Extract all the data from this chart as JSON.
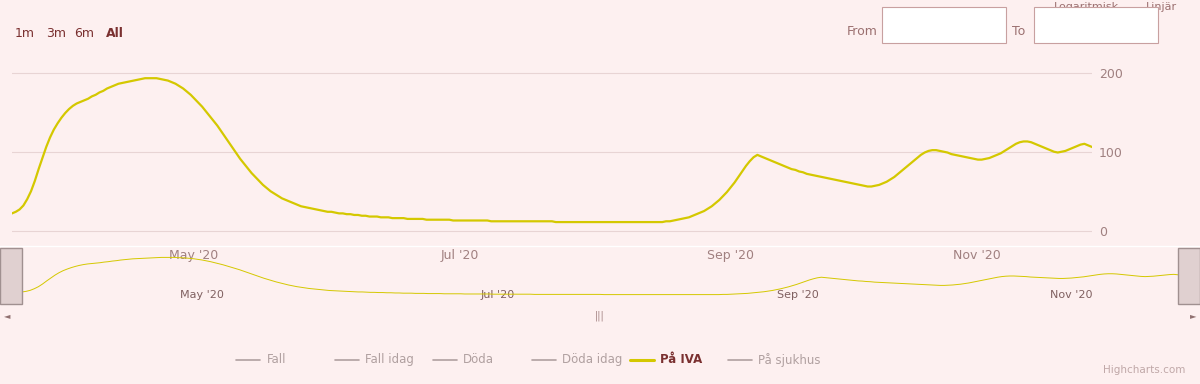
{
  "bg_color": "#fdf0f0",
  "plot_bg_color": "#fdf0f0",
  "line_color": "#d4c800",
  "line_width": 1.6,
  "y_ticks": [
    0,
    100,
    200
  ],
  "y_labels": [
    "0",
    "100",
    "200"
  ],
  "ylim": [
    -18,
    235
  ],
  "x_tick_labels": [
    "May '20",
    "Jul '20",
    "Sep '20",
    "Nov '20"
  ],
  "x_tick_positions": [
    0.168,
    0.415,
    0.665,
    0.893
  ],
  "grid_color": "#e8d4d4",
  "navigator_bg": "#d4c8c8",
  "scrollbar_color": "#c8a8a8",
  "top_labels_left": [
    "1m",
    "3m",
    "6m",
    "All"
  ],
  "top_label_bold": "All",
  "log_lin_text_left": "Logaritmisk",
  "log_lin_text_right": "Linjär",
  "legend_items": [
    "Fall",
    "Fall idag",
    "Döda",
    "Döda idag",
    "På IVA",
    "På sjukhus"
  ],
  "legend_colors": [
    "#b0a0a0",
    "#b0a0a0",
    "#b0a0a0",
    "#b0a0a0",
    "#d4c800",
    "#b0a0a0"
  ],
  "legend_bold_idx": 4,
  "watermark": "Highcharts.com",
  "icu_data": [
    22,
    24,
    27,
    32,
    40,
    50,
    63,
    78,
    92,
    106,
    118,
    128,
    136,
    143,
    149,
    154,
    158,
    161,
    163,
    165,
    167,
    170,
    172,
    175,
    177,
    180,
    182,
    184,
    186,
    187,
    188,
    189,
    190,
    191,
    192,
    193,
    193,
    193,
    193,
    192,
    191,
    190,
    188,
    186,
    183,
    180,
    176,
    172,
    167,
    162,
    157,
    151,
    145,
    139,
    133,
    126,
    119,
    112,
    105,
    98,
    91,
    85,
    79,
    73,
    68,
    63,
    58,
    54,
    50,
    47,
    44,
    41,
    39,
    37,
    35,
    33,
    31,
    30,
    29,
    28,
    27,
    26,
    25,
    24,
    24,
    23,
    22,
    22,
    21,
    21,
    20,
    20,
    19,
    19,
    18,
    18,
    18,
    17,
    17,
    17,
    16,
    16,
    16,
    16,
    15,
    15,
    15,
    15,
    15,
    14,
    14,
    14,
    14,
    14,
    14,
    14,
    13,
    13,
    13,
    13,
    13,
    13,
    13,
    13,
    13,
    13,
    12,
    12,
    12,
    12,
    12,
    12,
    12,
    12,
    12,
    12,
    12,
    12,
    12,
    12,
    12,
    12,
    12,
    11,
    11,
    11,
    11,
    11,
    11,
    11,
    11,
    11,
    11,
    11,
    11,
    11,
    11,
    11,
    11,
    11,
    11,
    11,
    11,
    11,
    11,
    11,
    11,
    11,
    11,
    11,
    11,
    11,
    12,
    12,
    13,
    14,
    15,
    16,
    17,
    19,
    21,
    23,
    25,
    28,
    31,
    35,
    39,
    44,
    49,
    55,
    61,
    68,
    75,
    82,
    88,
    93,
    96,
    94,
    92,
    90,
    88,
    86,
    84,
    82,
    80,
    78,
    77,
    75,
    74,
    72,
    71,
    70,
    69,
    68,
    67,
    66,
    65,
    64,
    63,
    62,
    61,
    60,
    59,
    58,
    57,
    56,
    56,
    57,
    58,
    60,
    62,
    65,
    68,
    72,
    76,
    80,
    84,
    88,
    92,
    96,
    99,
    101,
    102,
    102,
    101,
    100,
    99,
    97,
    96,
    95,
    94,
    93,
    92,
    91,
    90,
    90,
    91,
    92,
    94,
    96,
    98,
    101,
    104,
    107,
    110,
    112,
    113,
    113,
    112,
    110,
    108,
    106,
    104,
    102,
    100,
    99,
    100,
    101,
    103,
    105,
    107,
    109,
    110,
    108,
    106
  ]
}
